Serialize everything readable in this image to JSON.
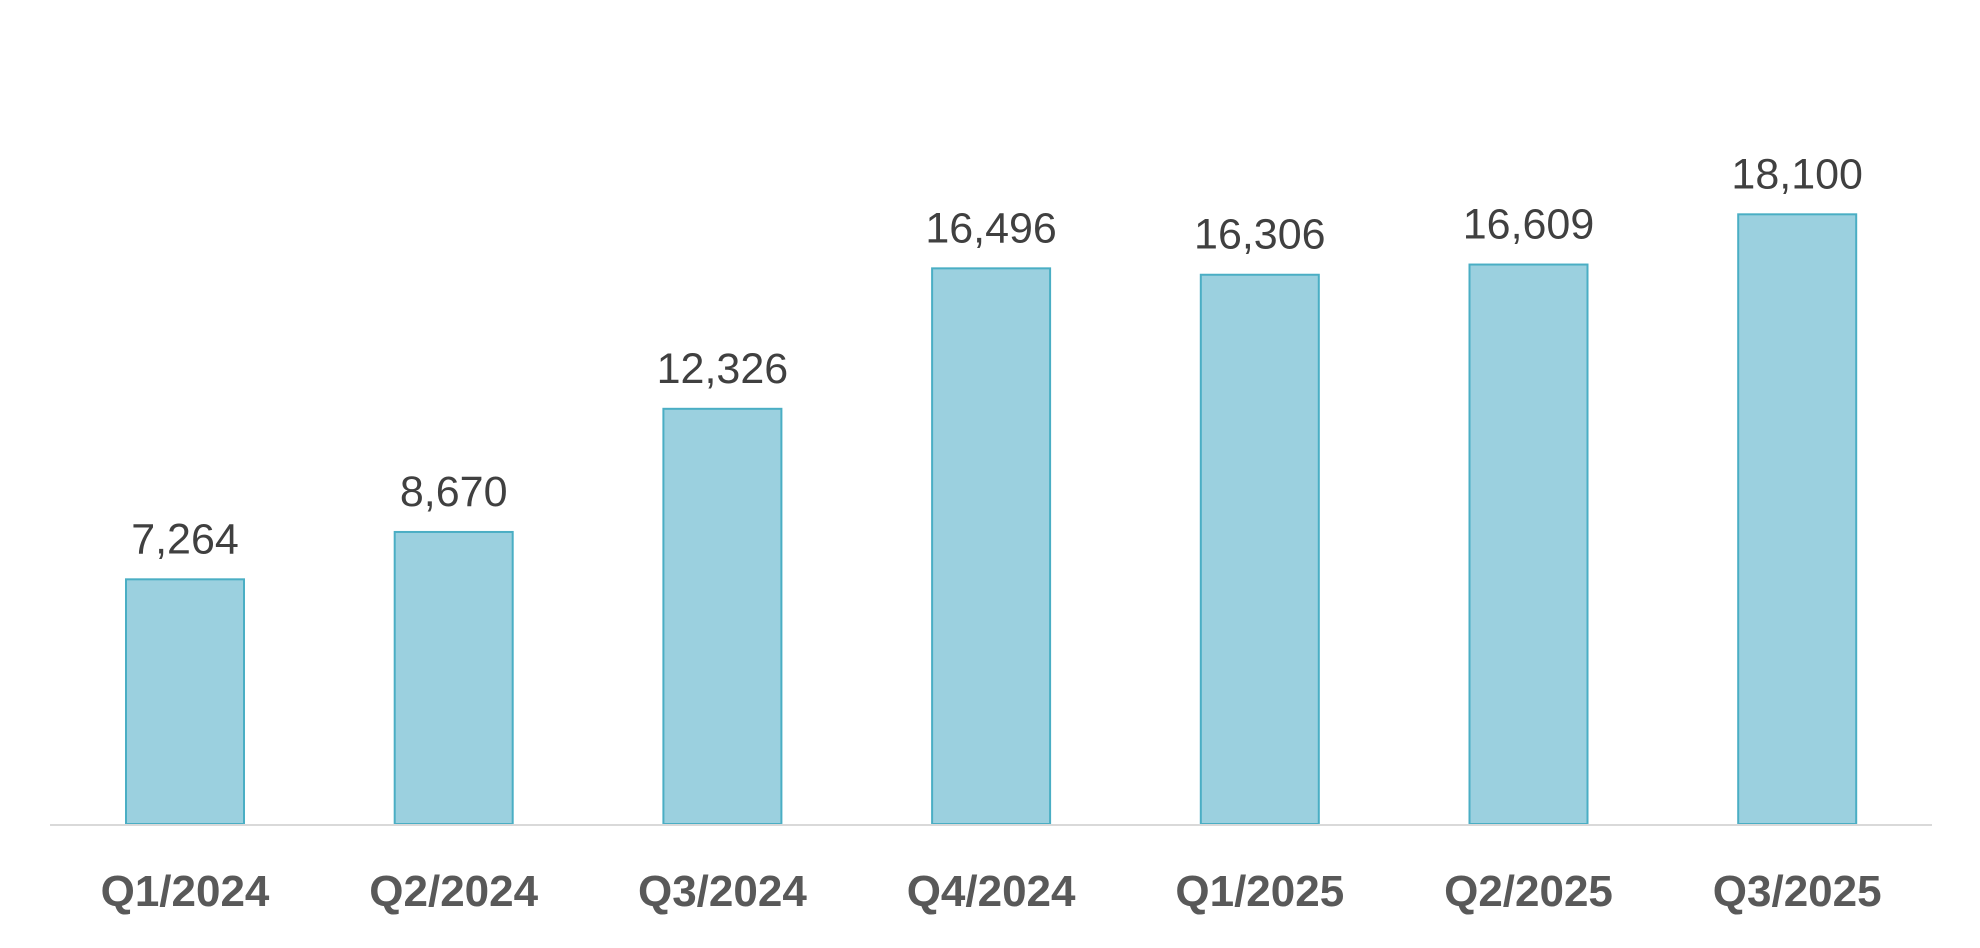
{
  "chart_data": {
    "type": "bar",
    "title": "",
    "xlabel": "",
    "ylabel": "",
    "categories": [
      "Q1/2024",
      "Q2/2024",
      "Q3/2024",
      "Q4/2024",
      "Q1/2025",
      "Q2/2025",
      "Q3/2025"
    ],
    "values": [
      7264,
      8670,
      12326,
      16496,
      16306,
      16609,
      18100
    ],
    "value_labels": [
      "7,264",
      "8,670",
      "12,326",
      "16,496",
      "16,306",
      "16,609",
      "18,100"
    ],
    "ylim": [
      0,
      21375
    ],
    "grid": false,
    "legend": "none",
    "colors": {
      "bar_fill": "#9bd0df",
      "bar_stroke": "#4aaec4",
      "axis_line": "#d9d9d9",
      "value_text": "#404040",
      "category_text": "#595959"
    }
  }
}
